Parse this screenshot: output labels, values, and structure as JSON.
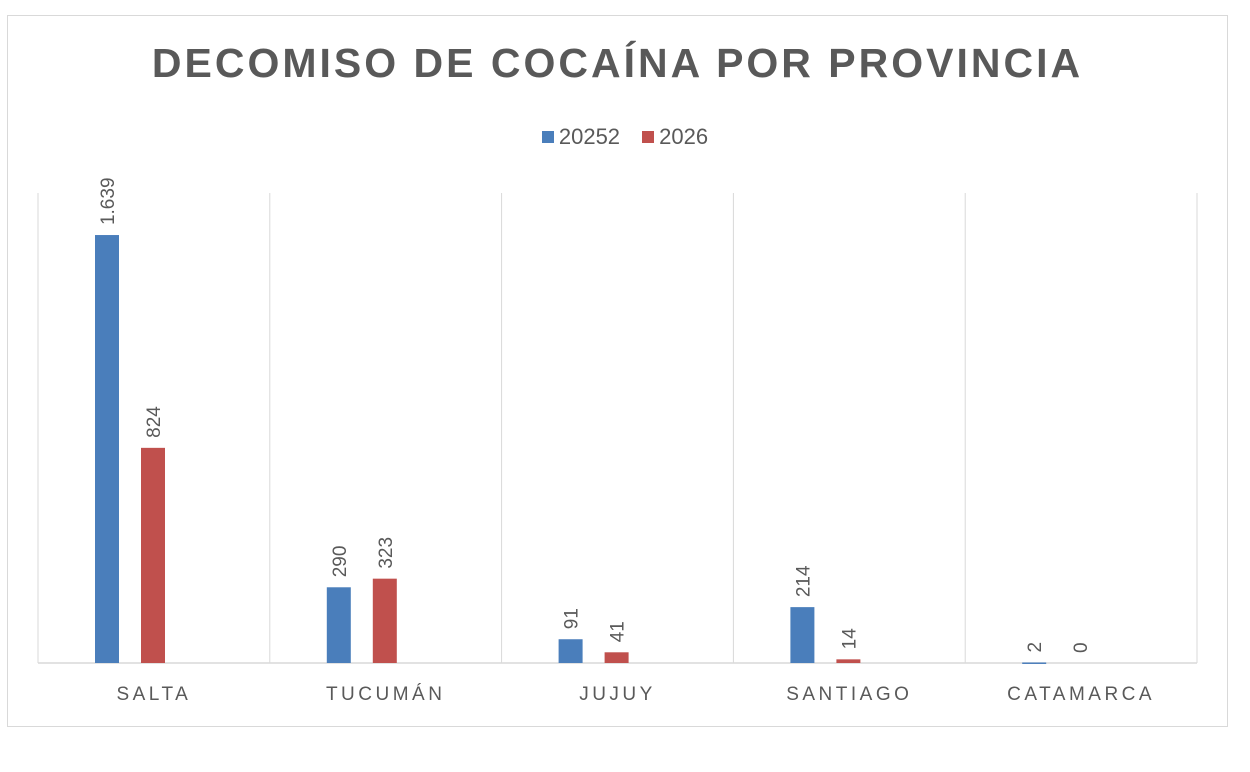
{
  "chart_data": {
    "type": "bar",
    "title": "DECOMISO DE COCAÍNA POR PROVINCIA",
    "categories": [
      "SALTA",
      "TUCUMÁN",
      "JUJUY",
      "SANTIAGO",
      "CATAMARCA"
    ],
    "series": [
      {
        "name": "20252",
        "color": "#4a7ebb",
        "values": [
          1639,
          290,
          91,
          214,
          2
        ],
        "labels": [
          "1.639",
          "290",
          "91",
          "214",
          "2"
        ]
      },
      {
        "name": "2026",
        "color": "#c0504d",
        "values": [
          824,
          323,
          41,
          14,
          0
        ],
        "labels": [
          "824",
          "323",
          "41",
          "14",
          "0"
        ]
      }
    ],
    "xlabel": "",
    "ylabel": "",
    "ylim": [
      0,
      1800
    ],
    "grid": "vertical category separators",
    "legend_position": "top",
    "data_labels": "rotated above bars"
  }
}
